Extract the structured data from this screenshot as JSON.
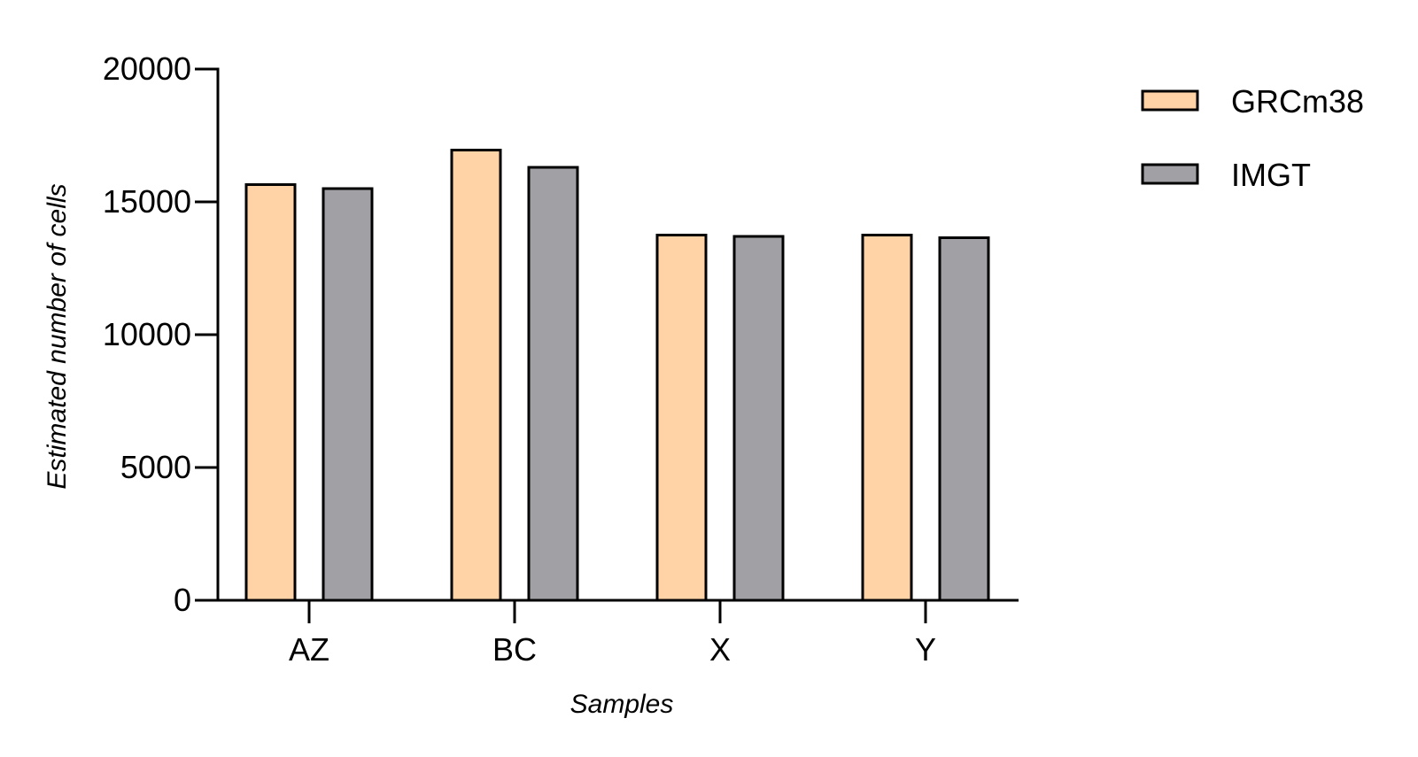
{
  "chart_data": {
    "type": "bar",
    "title": "",
    "xlabel": "Samples",
    "ylabel": "Estimated number of cells",
    "categories": [
      "AZ",
      "BC",
      "X",
      "Y"
    ],
    "series": [
      {
        "name": "GRCm38",
        "color": "#FFD3A6",
        "values": [
          15650,
          16950,
          13750,
          13750
        ]
      },
      {
        "name": "IMGT",
        "color": "#A1A1A5",
        "values": [
          15500,
          16300,
          13700,
          13650
        ]
      }
    ],
    "ylim": [
      0,
      20000
    ],
    "yticks": [
      0,
      5000,
      10000,
      15000,
      20000
    ],
    "grid": false,
    "legend_position": "top-right"
  }
}
